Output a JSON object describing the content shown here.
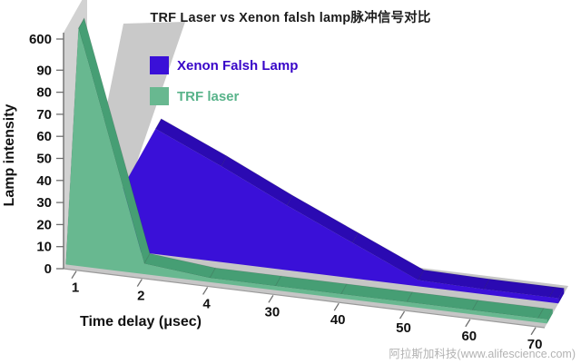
{
  "title": "TRF Laser vs Xenon falsh lamp脉冲信号对比",
  "watermark": "阿拉斯加科技(www.alifescience.com)",
  "legend": [
    {
      "label": "Xenon Falsh Lamp",
      "color": "#3a10d8",
      "text_color": "#3805c8"
    },
    {
      "label": "TRF laser",
      "color": "#68b890",
      "text_color": "#58b38a"
    }
  ],
  "chart_data": {
    "type": "area",
    "style": "3d-area",
    "title": "TRF Laser vs Xenon falsh lamp脉冲信号对比",
    "xlabel": "Time delay (μsec)",
    "ylabel": "Lamp intensity",
    "categories": [
      1,
      2,
      4,
      30,
      40,
      50,
      60,
      70
    ],
    "y_ticks": [
      0,
      10,
      20,
      30,
      40,
      50,
      60,
      70,
      80,
      90,
      600
    ],
    "y_axis_break": "axis broken above 90, top tick is 600",
    "legend_position": "top-center",
    "grid": false,
    "series": [
      {
        "name": "Xenon Falsh Lamp",
        "values": [
          0,
          60,
          46,
          31,
          17,
          3,
          2.5,
          2.5
        ],
        "color": "#3a10d8",
        "color_top": "#2b0ab2",
        "color_side": "#2f0cbb"
      },
      {
        "name": "TRF laser",
        "values": [
          600,
          5,
          2,
          2,
          2,
          2,
          2,
          2
        ],
        "color": "#68b890",
        "color_top": "#469e74",
        "color_side": "#2e7b55"
      }
    ],
    "colors": {
      "floor": "#c6c6c6",
      "wall": "#d2d2d2",
      "shadow_spike": "#c9c9c9",
      "axis": "#6f6f6f",
      "tick_text": "#111111"
    }
  }
}
